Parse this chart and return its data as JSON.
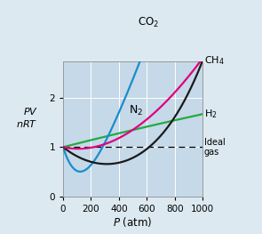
{
  "xlabel": "P (atm)",
  "xlim": [
    0,
    1000
  ],
  "ylim": [
    0,
    2.75
  ],
  "yticks": [
    0,
    1.0,
    2.0
  ],
  "xticks": [
    0,
    200,
    400,
    600,
    800,
    1000
  ],
  "plot_bg": "#c5d9e8",
  "fig_bg": "#dce9f0",
  "ideal_gas_y": 1.0,
  "gases": {
    "CH4": {
      "color": "#1a1a1a"
    },
    "N2": {
      "color": "#e0007f"
    },
    "H2": {
      "color": "#22aa44"
    },
    "CO2": {
      "color": "#1a8ccc"
    }
  }
}
